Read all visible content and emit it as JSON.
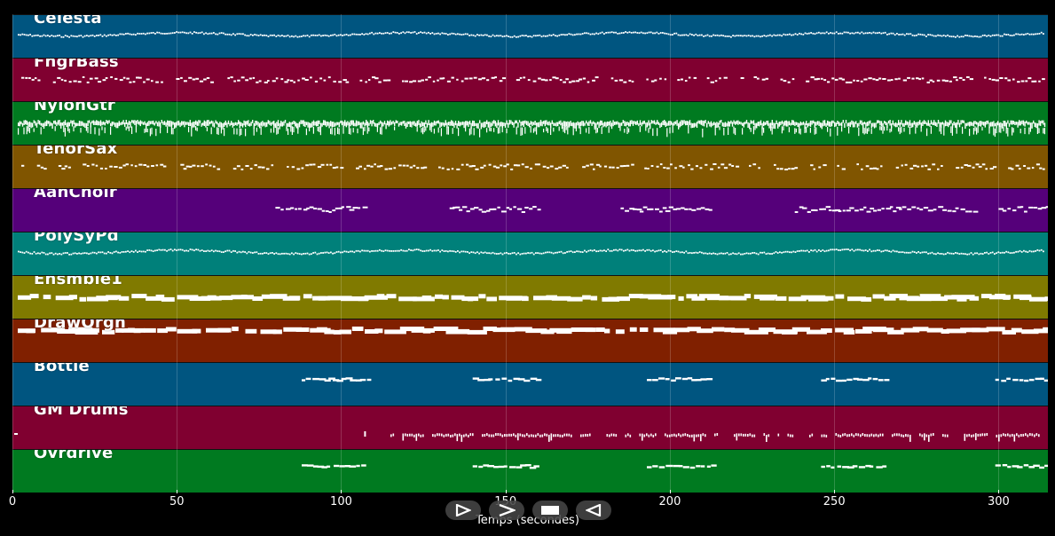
{
  "xaxis": {
    "label": "Temps (secondes)",
    "ticks": [
      "0",
      "50",
      "100",
      "150",
      "200",
      "250",
      "300"
    ],
    "tick_values": [
      0,
      50,
      100,
      150,
      200,
      250,
      300
    ],
    "range": [
      0,
      315
    ]
  },
  "tracks": [
    {
      "name": "Celesta",
      "color": "#005580",
      "pattern": "wave-top"
    },
    {
      "name": "FngrBass",
      "color": "#800030",
      "pattern": "sparse-mid"
    },
    {
      "name": "NylonGtr",
      "color": "#007a20",
      "pattern": "dense-band"
    },
    {
      "name": "TenorSax",
      "color": "#805500",
      "pattern": "sparse-mid"
    },
    {
      "name": "AahChoir",
      "color": "#55007a",
      "pattern": "phrases"
    },
    {
      "name": "PolySyPd",
      "color": "#00807a",
      "pattern": "wave-top"
    },
    {
      "name": "Ensmble1",
      "color": "#807a00",
      "pattern": "thick-line"
    },
    {
      "name": "DrawOrgn",
      "color": "#802000",
      "pattern": "thick-line-top"
    },
    {
      "name": "Bottle",
      "color": "#005580",
      "pattern": "blocks"
    },
    {
      "name": "GM Drums",
      "color": "#800030",
      "pattern": "drums"
    },
    {
      "name": "Ovrdrive",
      "color": "#007a20",
      "pattern": "blocks"
    }
  ],
  "controls": [
    {
      "name": "play-forward",
      "label": "Play"
    },
    {
      "name": "fast-forward",
      "label": "Next"
    },
    {
      "name": "stop",
      "label": "Stop"
    },
    {
      "name": "rewind",
      "label": "Previous"
    }
  ]
}
